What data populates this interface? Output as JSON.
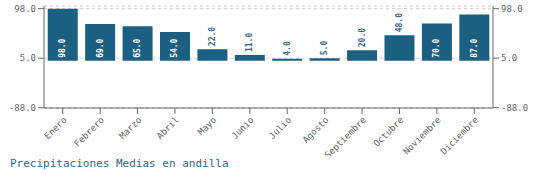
{
  "chart_data": {
    "type": "bar",
    "title": "Precipitaciones Medias en andilla",
    "categories": [
      "Enero",
      "Febrero",
      "Marzo",
      "Abril",
      "Mayo",
      "Junio",
      "Julio",
      "Agosto",
      "Septiembre",
      "Octubre",
      "Noviembre",
      "Diciembre"
    ],
    "values": [
      98.0,
      69.0,
      65.0,
      54.0,
      22.0,
      11.0,
      4.0,
      5.0,
      20.0,
      48.0,
      70.0,
      87.0
    ],
    "value_labels": [
      "98.0",
      "69.0",
      "65.0",
      "54.0",
      "22.0",
      "11.0",
      "4.0",
      "5.0",
      "20.0",
      "48.0",
      "70.0",
      "87.0"
    ],
    "color": "#1b6080",
    "ylim": [
      -88.5,
      103.0
    ],
    "yticks": [
      {
        "value": -88,
        "label": "-88.0"
      },
      {
        "value": 5,
        "label": "5.0"
      },
      {
        "value": 98,
        "label": "98.0"
      }
    ],
    "y2lim": [
      -88.5,
      103.0
    ],
    "y2ticks": [
      {
        "value": -88,
        "label": "-88.0"
      },
      {
        "value": 5,
        "label": "5.0"
      },
      {
        "value": 98,
        "label": "98.0"
      }
    ],
    "grid": true,
    "data_labels": true
  }
}
